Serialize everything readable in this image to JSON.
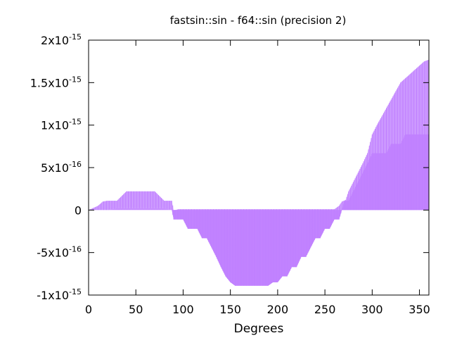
{
  "chart_data": {
    "type": "area",
    "title": "fastsin::sin - f64::sin (precision 2)",
    "xlabel": "Degrees",
    "ylabel": "",
    "xlim": [
      0,
      360
    ],
    "ylim": [
      -1e-15,
      2e-15
    ],
    "x_ticks": [
      {
        "value": 0,
        "label": "0"
      },
      {
        "value": 50,
        "label": "50"
      },
      {
        "value": 100,
        "label": "100"
      },
      {
        "value": 150,
        "label": "150"
      },
      {
        "value": 200,
        "label": "200"
      },
      {
        "value": 250,
        "label": "250"
      },
      {
        "value": 300,
        "label": "300"
      },
      {
        "value": 350,
        "label": "350"
      }
    ],
    "y_ticks": [
      {
        "value": 2e-15,
        "mantissa": "2x10",
        "exponent": "-15"
      },
      {
        "value": 1.5e-15,
        "mantissa": "1.5x10",
        "exponent": "-15"
      },
      {
        "value": 1e-15,
        "mantissa": "1x10",
        "exponent": "-15"
      },
      {
        "value": 5e-16,
        "mantissa": "5x10",
        "exponent": "-16"
      },
      {
        "value": 0,
        "mantissa": "0",
        "exponent": ""
      },
      {
        "value": -5e-16,
        "mantissa": "-5x10",
        "exponent": "-16"
      },
      {
        "value": -1e-15,
        "mantissa": "-1x10",
        "exponent": "-15"
      }
    ],
    "grid": false,
    "legend": "none",
    "series": [
      {
        "color": "#c080ff",
        "x": [
          0,
          10,
          15,
          20,
          30,
          40,
          50,
          60,
          70,
          80,
          88,
          90,
          92,
          95,
          100,
          105,
          110,
          115,
          120,
          125,
          130,
          135,
          140,
          145,
          150,
          155,
          160,
          165,
          170,
          175,
          180,
          185,
          190,
          195,
          200,
          205,
          210,
          215,
          220,
          225,
          230,
          235,
          240,
          245,
          250,
          255,
          260,
          265,
          268,
          270,
          272,
          275,
          280,
          285,
          290,
          295,
          300,
          305,
          310,
          315,
          320,
          325,
          330,
          335,
          340,
          345,
          350,
          355,
          360
        ],
        "upper": [
          0,
          5e-17,
          1e-16,
          1.1e-16,
          1.1e-16,
          2.2e-16,
          2.2e-16,
          2.2e-16,
          2.2e-16,
          1.1e-16,
          1.1e-16,
          0,
          0,
          1e-17,
          1e-17,
          1e-17,
          1e-17,
          1e-17,
          1e-17,
          1e-17,
          1e-17,
          1e-17,
          1e-17,
          1e-17,
          1e-17,
          1e-17,
          1e-17,
          1e-17,
          1e-17,
          1e-17,
          1e-17,
          1e-17,
          1e-17,
          1e-17,
          1e-17,
          1e-17,
          1e-17,
          1e-17,
          1e-17,
          1e-17,
          1e-17,
          1e-17,
          1e-17,
          1e-17,
          1e-17,
          1e-17,
          1e-17,
          5e-17,
          1e-16,
          1.1e-16,
          1.2e-16,
          2.2e-16,
          3.3e-16,
          4.4e-16,
          5.5e-16,
          6.7e-16,
          8.9e-16,
          1e-15,
          1.1e-15,
          1.2e-15,
          1.3e-15,
          1.4e-15,
          1.5e-15,
          1.55e-15,
          1.6e-15,
          1.65e-15,
          1.7e-15,
          1.75e-15,
          1.77e-15
        ],
        "lower": [
          0,
          0,
          0,
          0,
          2e-17,
          2e-17,
          2e-17,
          2e-17,
          2e-17,
          2e-17,
          0,
          -1.1e-16,
          -1.1e-16,
          -1.1e-16,
          -1.1e-16,
          -2.2e-16,
          -2.2e-16,
          -2.2e-16,
          -3.3e-16,
          -3.3e-16,
          -4.4e-16,
          -5.5e-16,
          -6.7e-16,
          -7.8e-16,
          -8.5e-16,
          -8.9e-16,
          -8.9e-16,
          -8.9e-16,
          -8.9e-16,
          -8.9e-16,
          -8.9e-16,
          -8.9e-16,
          -8.9e-16,
          -8.5e-16,
          -8.5e-16,
          -7.8e-16,
          -7.8e-16,
          -6.7e-16,
          -6.7e-16,
          -5.5e-16,
          -5.5e-16,
          -4.4e-16,
          -3.3e-16,
          -3.3e-16,
          -2.2e-16,
          -2.2e-16,
          -1.1e-16,
          -1.1e-16,
          0,
          0,
          0,
          0,
          0,
          0,
          0,
          0,
          0,
          0,
          0,
          0,
          0,
          0,
          0,
          0,
          0,
          0,
          0,
          0,
          0
        ],
        "dense_floor": [
          0,
          0,
          0,
          0,
          0,
          0,
          0,
          0,
          0,
          0,
          0,
          0,
          0,
          0,
          0,
          0,
          0,
          0,
          0,
          0,
          0,
          0,
          0,
          0,
          0,
          0,
          0,
          0,
          0,
          0,
          0,
          0,
          0,
          0,
          0,
          0,
          0,
          0,
          0,
          0,
          0,
          0,
          0,
          0,
          0,
          0,
          0,
          0,
          0,
          1e-16,
          1.1e-16,
          1.1e-16,
          2.2e-16,
          3.3e-16,
          4.4e-16,
          5.5e-16,
          6.7e-16,
          6.7e-16,
          6.7e-16,
          6.7e-16,
          7.8e-16,
          7.8e-16,
          7.8e-16,
          8.9e-16,
          8.9e-16,
          8.9e-16,
          8.9e-16,
          8.9e-16,
          8.9e-16
        ]
      }
    ]
  }
}
